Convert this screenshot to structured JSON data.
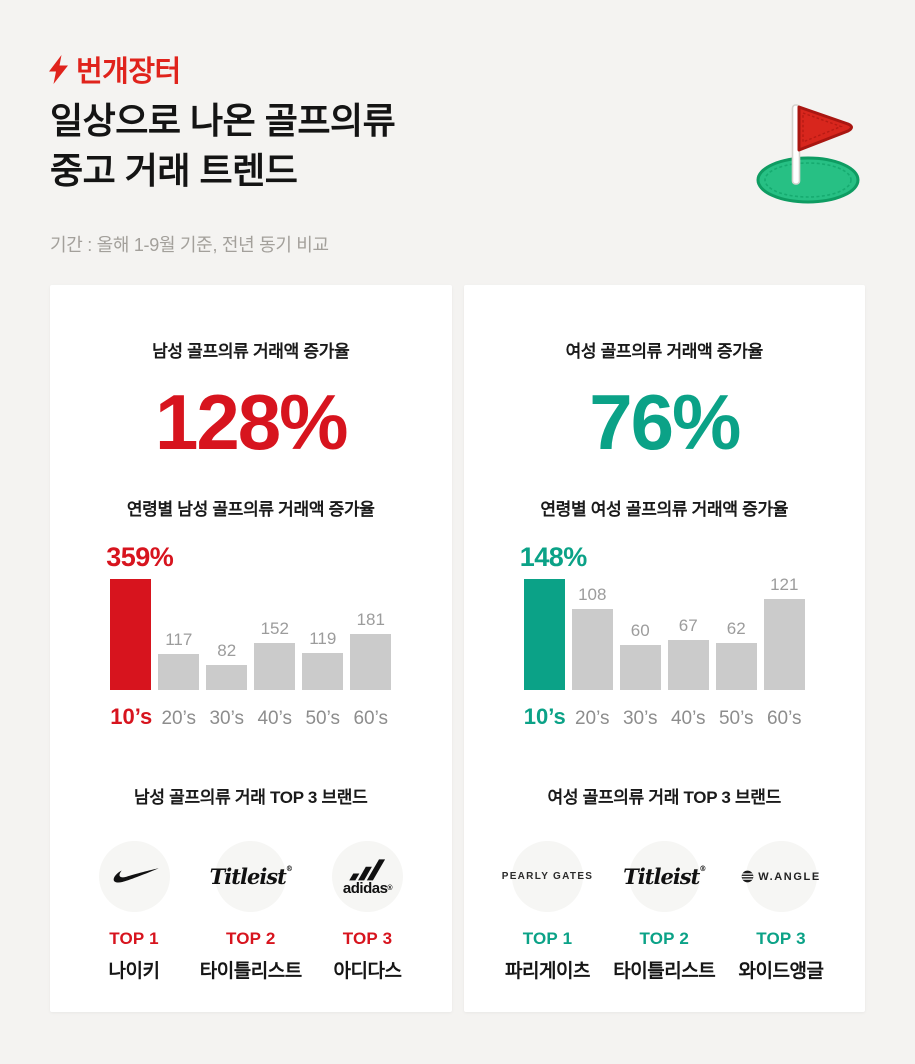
{
  "brand": {
    "logo_text": "번개장터"
  },
  "header": {
    "title_line1": "일상으로 나온 골프의류",
    "title_line2": "중고 거래 트렌드",
    "subtitle": "기간 : 올해 1-9월 기준, 전년 동기 비교"
  },
  "colors": {
    "logo_red": "#e0231c",
    "accent_red": "#d7141e",
    "accent_green": "#0ba287",
    "bar_gray": "#cbcbcb",
    "background": "#f4f3f1"
  },
  "cards": [
    {
      "accent": "#d7141e",
      "stat_label": "남성 골프의류 거래액 증가율",
      "stat_value": "128%",
      "top_title": "남성 골프의류 거래 TOP 3 브랜드",
      "brands": [
        {
          "rank": "TOP 1",
          "name": "나이키",
          "logo": "nike"
        },
        {
          "rank": "TOP 2",
          "name": "타이틀리스트",
          "logo": "titleist",
          "logo_text": "Titleist"
        },
        {
          "rank": "TOP 3",
          "name": "아디다스",
          "logo": "adidas",
          "logo_text": "adidas"
        }
      ]
    },
    {
      "accent": "#0ba287",
      "stat_label": "여성 골프의류 거래액 증가율",
      "stat_value": "76%",
      "top_title": "여성 골프의류 거래 TOP 3 브랜드",
      "brands": [
        {
          "rank": "TOP 1",
          "name": "파리게이츠",
          "logo": "pearly-gates",
          "logo_text": "PEARLY GATES"
        },
        {
          "rank": "TOP 2",
          "name": "타이틀리스트",
          "logo": "titleist",
          "logo_text": "Titleist"
        },
        {
          "rank": "TOP 3",
          "name": "와이드앵글",
          "logo": "w-angle",
          "logo_text": "W.ANGLE"
        }
      ]
    }
  ],
  "chart_data": [
    {
      "type": "bar",
      "title": "연령별 남성 골프의류 거래액 증가율",
      "categories": [
        "10’s",
        "20’s",
        "30’s",
        "40’s",
        "50’s",
        "60’s"
      ],
      "values": [
        359,
        117,
        82,
        152,
        119,
        181
      ],
      "unit": "%",
      "highlight_index": 0,
      "highlight_label": "359%",
      "highlight_color": "#d7141e",
      "bar_color": "#cbcbcb",
      "value_labels_shown_for_gray_bars": true,
      "grid": false,
      "legend": false
    },
    {
      "type": "bar",
      "title": "연령별 여성 골프의류 거래액 증가율",
      "categories": [
        "10’s",
        "20’s",
        "30’s",
        "40’s",
        "50’s",
        "60’s"
      ],
      "values": [
        148,
        108,
        60,
        67,
        62,
        121
      ],
      "unit": "%",
      "highlight_index": 0,
      "highlight_label": "148%",
      "highlight_color": "#0ba287",
      "bar_color": "#cbcbcb",
      "value_labels_shown_for_gray_bars": true,
      "grid": false,
      "legend": false
    }
  ]
}
